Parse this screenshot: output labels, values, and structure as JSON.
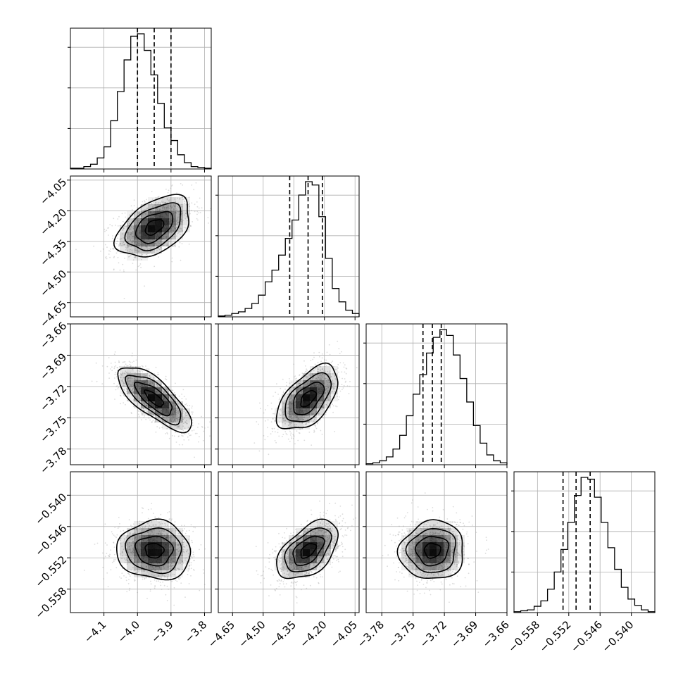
{
  "chart_data": {
    "type": "corner",
    "grid": true,
    "n_params": 4,
    "params": [
      {
        "ticks": [
          -4.1,
          -4.0,
          -3.9,
          -3.8
        ],
        "tick_labels": [
          "−4.1",
          "−4.0",
          "−3.9",
          "−3.8"
        ],
        "range": [
          -4.2,
          -3.78
        ],
        "quantiles": [
          -4.0,
          -3.95,
          -3.9
        ],
        "hist_bins": 21
      },
      {
        "ticks": [
          -4.65,
          -4.5,
          -4.35,
          -4.2,
          -4.05
        ],
        "tick_labels": [
          "−4.65",
          "−4.50",
          "−4.35",
          "−4.20",
          "−4.05"
        ],
        "range": [
          -4.72,
          -4.03
        ],
        "quantiles": [
          -4.37,
          -4.28,
          -4.21
        ],
        "hist_bins": 21
      },
      {
        "ticks": [
          -3.78,
          -3.75,
          -3.72,
          -3.69,
          -3.66
        ],
        "tick_labels": [
          "−3.78",
          "−3.75",
          "−3.72",
          "−3.69",
          "−3.66"
        ],
        "range": [
          -3.795,
          -3.66
        ],
        "quantiles": [
          -3.7405,
          -3.7315,
          -3.723
        ],
        "hist_bins": 21
      },
      {
        "ticks": [
          -0.558,
          -0.552,
          -0.546,
          -0.54
        ],
        "tick_labels": [
          "−0.558",
          "−0.552",
          "−0.546",
          "−0.540"
        ],
        "range": [
          -0.5625,
          -0.5355
        ],
        "quantiles": [
          -0.5531,
          -0.5506,
          -0.5479
        ],
        "hist_bins": 21
      }
    ],
    "marginals": [
      [
        1,
        1,
        3,
        6,
        14,
        28,
        61,
        98,
        138,
        168,
        171,
        150,
        119,
        83,
        52,
        36,
        18,
        8,
        3,
        2,
        1
      ],
      [
        1,
        2,
        4,
        6,
        10,
        16,
        26,
        42,
        56,
        74,
        94,
        116,
        146,
        162,
        158,
        120,
        70,
        34,
        18,
        8,
        4
      ],
      [
        1,
        2,
        4,
        8,
        16,
        30,
        50,
        72,
        92,
        114,
        130,
        138,
        132,
        112,
        88,
        64,
        40,
        22,
        10,
        4,
        2
      ],
      [
        1,
        2,
        3,
        7,
        13,
        26,
        45,
        70,
        100,
        130,
        150,
        148,
        128,
        100,
        72,
        48,
        28,
        15,
        8,
        3,
        1
      ]
    ],
    "correlations": [
      {
        "x": 0,
        "y": 1,
        "mean": [
          -3.95,
          -4.28
        ],
        "sd": [
          0.055,
          0.075
        ],
        "rho": 0.45
      },
      {
        "x": 0,
        "y": 2,
        "mean": [
          -3.95,
          -3.7315
        ],
        "sd": [
          0.055,
          0.0155
        ],
        "rho": -0.75
      },
      {
        "x": 1,
        "y": 2,
        "mean": [
          -4.28,
          -3.7315
        ],
        "sd": [
          0.075,
          0.0155
        ],
        "rho": 0.55
      },
      {
        "x": 0,
        "y": 3,
        "mean": [
          -3.95,
          -0.5506
        ],
        "sd": [
          0.055,
          0.0028
        ],
        "rho": -0.05
      },
      {
        "x": 1,
        "y": 3,
        "mean": [
          -4.28,
          -0.5506
        ],
        "sd": [
          0.075,
          0.0028
        ],
        "rho": 0.5
      },
      {
        "x": 2,
        "y": 3,
        "mean": [
          -3.7315,
          -0.5506
        ],
        "sd": [
          0.0155,
          0.0028
        ],
        "rho": 0.05
      }
    ],
    "contour_levels": [
      0.5,
      1.0,
      1.5,
      2.0
    ]
  }
}
